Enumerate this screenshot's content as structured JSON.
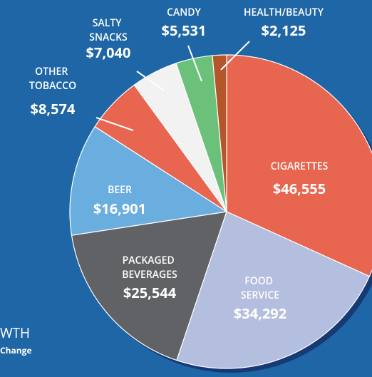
{
  "chart_data": {
    "type": "pie",
    "categories": [
      "CIGARETTES",
      "FOOD SERVICE",
      "PACKAGED BEVERAGES",
      "BEER",
      "OTHER TOBACCO",
      "SALTY SNACKS",
      "CANDY",
      "HEALTH/BEAUTY"
    ],
    "values": [
      46555,
      34292,
      25544,
      16901,
      8574,
      7040,
      5531,
      2125
    ],
    "value_labels": [
      "$46,555",
      "$34,292",
      "$25,544",
      "$16,901",
      "$8,574",
      "$7,040",
      "$5,531",
      "$2,125"
    ],
    "colors": [
      "#e8654f",
      "#b4bede",
      "#606266",
      "#6aaee0",
      "#e8654f",
      "#f2f2f2",
      "#6cc17a",
      "#b5562a"
    ]
  },
  "fragments": [
    "WTH",
    "Change"
  ]
}
